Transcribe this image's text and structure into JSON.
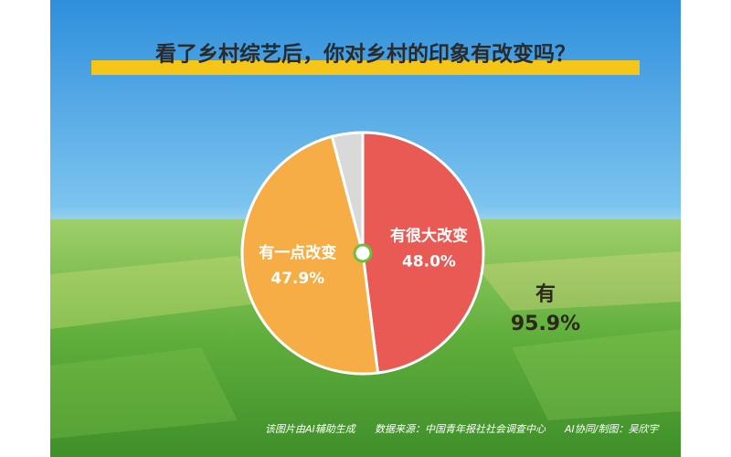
{
  "chart_data": {
    "type": "pie",
    "title": "看了乡村综艺后，你对乡村的印象有改变吗？",
    "categories": [
      "有很大改变",
      "有一点改变",
      null
    ],
    "values": [
      48.0,
      47.9,
      4.1
    ],
    "value_labels": [
      "48.0%",
      "47.9%",
      null
    ],
    "colors": [
      "#e85a53",
      "#f7ad45",
      "#d9d9d9"
    ],
    "annotation": [
      "有",
      "95.9%"
    ],
    "footer": [
      "该图片由AI辅助生成",
      "数据来源：中国青年报社社会调查中心",
      "AI协同/制图：吴欣宇"
    ]
  }
}
